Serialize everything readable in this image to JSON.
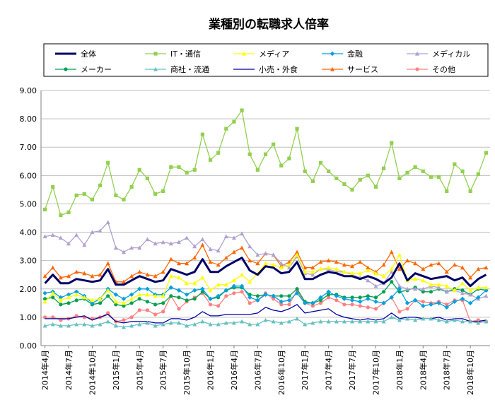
{
  "chart_data": {
    "type": "line",
    "title": "業種別の転職求人倍率",
    "xlabel": "",
    "ylabel": "",
    "ylim": [
      0,
      9
    ],
    "yticks": [
      "0.00",
      "1.00",
      "2.00",
      "3.00",
      "4.00",
      "5.00",
      "6.00",
      "7.00",
      "8.00",
      "9.00"
    ],
    "grid": "horizontal",
    "legend_position": "top",
    "x": [
      "2014年4月",
      "2014年5月",
      "2014年6月",
      "2014年7月",
      "2014年8月",
      "2014年9月",
      "2014年10月",
      "2014年11月",
      "2014年12月",
      "2015年1月",
      "2015年2月",
      "2015年3月",
      "2015年4月",
      "2015年5月",
      "2015年6月",
      "2015年7月",
      "2015年8月",
      "2015年9月",
      "2015年10月",
      "2015年11月",
      "2015年12月",
      "2016年1月",
      "2016年2月",
      "2016年3月",
      "2016年4月",
      "2016年5月",
      "2016年6月",
      "2016年7月",
      "2016年8月",
      "2016年9月",
      "2016年10月",
      "2016年11月",
      "2016年12月",
      "2017年1月",
      "2017年2月",
      "2017年3月",
      "2017年4月",
      "2017年5月",
      "2017年6月",
      "2017年7月",
      "2017年8月",
      "2017年9月",
      "2017年10月",
      "2017年11月",
      "2017年12月",
      "2018年1月",
      "2018年2月",
      "2018年3月",
      "2018年4月",
      "2018年5月",
      "2018年6月",
      "2018年7月",
      "2018年8月",
      "2018年9月",
      "2018年10月",
      "2018年11月",
      "2018年12月"
    ],
    "xtick_labels": [
      "2014年4月",
      "2014年7月",
      "2014年10月",
      "2015年1月",
      "2015年4月",
      "2015年7月",
      "2015年10月",
      "2016年1月",
      "2016年4月",
      "2016年7月",
      "2016年10月",
      "2017年1月",
      "2017年4月",
      "2017年7月",
      "2017年10月",
      "2018年1月",
      "2018年4月",
      "2018年7月",
      "2018年10月"
    ],
    "series": [
      {
        "name": "全体",
        "color": "#000066",
        "width": 3,
        "marker": "none",
        "values": [
          2.2,
          2.5,
          2.2,
          2.2,
          2.35,
          2.3,
          2.25,
          2.3,
          2.7,
          2.15,
          2.15,
          2.3,
          2.45,
          2.35,
          2.25,
          2.3,
          2.7,
          2.6,
          2.5,
          2.6,
          3.05,
          2.6,
          2.6,
          2.8,
          2.95,
          3.1,
          2.65,
          2.5,
          2.8,
          2.75,
          2.55,
          2.6,
          2.95,
          2.35,
          2.35,
          2.5,
          2.6,
          2.55,
          2.45,
          2.45,
          2.35,
          2.45,
          2.35,
          2.2,
          2.4,
          2.9,
          2.3,
          2.55,
          2.45,
          2.35,
          2.4,
          2.45,
          2.3,
          2.4,
          2.1,
          2.35,
          2.5
        ]
      },
      {
        "name": "IT・通信",
        "color": "#92D050",
        "width": 1.3,
        "marker": "square",
        "values": [
          4.8,
          5.6,
          4.6,
          4.7,
          5.3,
          5.35,
          5.15,
          5.65,
          6.45,
          5.3,
          5.15,
          5.6,
          6.2,
          5.9,
          5.35,
          5.45,
          6.3,
          6.3,
          6.1,
          6.2,
          7.45,
          6.55,
          6.8,
          7.65,
          7.9,
          8.3,
          6.75,
          6.2,
          6.75,
          7.1,
          6.35,
          6.6,
          7.65,
          6.15,
          5.8,
          6.45,
          6.15,
          5.9,
          5.7,
          5.5,
          5.85,
          6.0,
          5.6,
          6.25,
          7.15,
          5.9,
          6.1,
          6.3,
          6.15,
          5.95,
          5.95,
          5.45,
          6.4,
          6.15,
          5.45,
          6.05,
          6.8
        ]
      },
      {
        "name": "メディア",
        "color": "#FFFF00",
        "width": 1.3,
        "marker": "triangle",
        "values": [
          1.55,
          1.85,
          1.6,
          1.7,
          1.8,
          1.7,
          1.6,
          1.65,
          1.95,
          1.55,
          1.5,
          1.65,
          1.8,
          1.8,
          1.75,
          1.75,
          2.45,
          2.4,
          2.2,
          2.2,
          2.4,
          1.95,
          2.15,
          2.15,
          2.3,
          2.5,
          2.25,
          2.55,
          2.9,
          2.85,
          2.75,
          2.85,
          3.2,
          2.6,
          2.6,
          2.7,
          2.75,
          2.7,
          2.6,
          2.55,
          2.55,
          2.65,
          2.55,
          2.45,
          2.7,
          3.2,
          2.3,
          2.35,
          2.3,
          2.15,
          2.15,
          2.1,
          1.95,
          2.2,
          1.95,
          2.05,
          2.05
        ]
      },
      {
        "name": "金融",
        "color": "#00A0E0",
        "width": 1.3,
        "marker": "diamond",
        "values": [
          1.85,
          1.9,
          1.7,
          1.8,
          1.9,
          1.75,
          1.5,
          1.65,
          2.0,
          1.8,
          1.65,
          1.8,
          2.0,
          2.0,
          1.8,
          1.8,
          2.05,
          1.95,
          1.8,
          1.95,
          2.0,
          1.65,
          1.75,
          1.95,
          2.1,
          2.1,
          1.7,
          1.6,
          1.8,
          1.75,
          1.55,
          1.6,
          1.85,
          1.5,
          1.5,
          1.7,
          1.9,
          1.75,
          1.65,
          1.6,
          1.55,
          1.65,
          1.55,
          1.5,
          1.7,
          2.0,
          1.5,
          1.6,
          1.4,
          1.45,
          1.5,
          1.35,
          1.55,
          1.65,
          1.5,
          1.7,
          1.95
        ]
      },
      {
        "name": "メディカル",
        "color": "#B0A0D0",
        "width": 1.3,
        "marker": "triangle",
        "values": [
          3.85,
          3.9,
          3.8,
          3.6,
          3.9,
          3.55,
          4.0,
          4.05,
          4.35,
          3.45,
          3.3,
          3.45,
          3.45,
          3.75,
          3.6,
          3.65,
          3.6,
          3.65,
          3.8,
          3.5,
          3.75,
          3.4,
          3.35,
          3.85,
          3.8,
          3.95,
          3.5,
          3.2,
          3.25,
          3.2,
          2.9,
          2.75,
          3.15,
          2.55,
          2.5,
          2.7,
          2.7,
          2.6,
          2.6,
          2.5,
          2.4,
          2.3,
          2.1,
          2.2,
          2.6,
          2.1,
          2.0,
          2.0,
          2.0,
          2.1,
          2.05,
          1.9,
          1.95,
          1.85,
          1.8,
          1.65,
          1.75
        ]
      },
      {
        "name": "メーカー",
        "color": "#00A050",
        "width": 1.3,
        "marker": "circle",
        "values": [
          1.65,
          1.7,
          1.45,
          1.5,
          1.6,
          1.65,
          1.45,
          1.5,
          1.75,
          1.45,
          1.4,
          1.5,
          1.65,
          1.55,
          1.45,
          1.5,
          1.75,
          1.7,
          1.6,
          1.65,
          1.9,
          1.65,
          1.7,
          1.95,
          2.05,
          2.05,
          1.8,
          1.75,
          1.8,
          1.75,
          1.75,
          1.75,
          2.0,
          1.55,
          1.5,
          1.6,
          1.8,
          1.8,
          1.7,
          1.7,
          1.7,
          1.75,
          1.7,
          1.9,
          2.25,
          1.9,
          1.95,
          2.05,
          1.9,
          1.9,
          2.0,
          1.9,
          2.0,
          1.95,
          1.8,
          2.0,
          1.95
        ]
      },
      {
        "name": "商社・流通",
        "color": "#66C0C0",
        "width": 1.3,
        "marker": "triangle",
        "values": [
          0.7,
          0.75,
          0.7,
          0.7,
          0.75,
          0.75,
          0.7,
          0.75,
          0.85,
          0.7,
          0.65,
          0.7,
          0.75,
          0.8,
          0.7,
          0.75,
          0.8,
          0.8,
          0.7,
          0.75,
          0.85,
          0.75,
          0.75,
          0.8,
          0.8,
          0.85,
          0.75,
          0.75,
          0.9,
          0.85,
          0.8,
          0.85,
          0.95,
          0.75,
          0.8,
          0.85,
          0.85,
          0.85,
          0.85,
          0.85,
          0.85,
          0.85,
          0.85,
          0.85,
          1.0,
          0.9,
          0.95,
          0.9,
          0.95,
          0.95,
          0.9,
          0.85,
          0.9,
          0.85,
          0.85,
          0.8,
          0.85
        ]
      },
      {
        "name": "小売・外食",
        "color": "#0000A0",
        "width": 1.3,
        "marker": "none",
        "values": [
          0.95,
          0.95,
          0.95,
          0.95,
          1.0,
          1.05,
          0.9,
          1.0,
          1.1,
          0.85,
          0.8,
          0.85,
          0.85,
          0.85,
          0.8,
          0.8,
          0.95,
          0.95,
          0.9,
          1.0,
          1.2,
          1.05,
          1.05,
          1.1,
          1.1,
          1.1,
          1.1,
          1.15,
          1.35,
          1.25,
          1.2,
          1.3,
          1.45,
          1.15,
          1.2,
          1.25,
          1.3,
          1.1,
          1.0,
          0.95,
          0.9,
          0.95,
          0.9,
          0.95,
          1.15,
          0.95,
          1.0,
          1.0,
          0.95,
          0.95,
          1.0,
          0.9,
          0.95,
          0.95,
          0.85,
          0.85,
          0.9
        ]
      },
      {
        "name": "サービス",
        "color": "#FF6600",
        "width": 1.3,
        "marker": "triangle",
        "values": [
          2.45,
          2.75,
          2.4,
          2.45,
          2.6,
          2.55,
          2.45,
          2.5,
          2.9,
          2.25,
          2.25,
          2.45,
          2.6,
          2.5,
          2.45,
          2.6,
          3.05,
          2.9,
          2.9,
          3.1,
          3.55,
          2.95,
          2.85,
          3.1,
          3.3,
          3.45,
          3.0,
          2.9,
          3.25,
          3.2,
          2.8,
          2.95,
          3.3,
          2.75,
          2.75,
          2.95,
          3.0,
          2.95,
          2.85,
          2.8,
          2.95,
          2.75,
          2.6,
          2.85,
          3.3,
          2.7,
          3.0,
          2.9,
          2.7,
          2.85,
          2.9,
          2.6,
          2.85,
          2.75,
          2.4,
          2.7,
          2.75
        ]
      },
      {
        "name": "その他",
        "color": "#FF8080",
        "width": 1.3,
        "marker": "circle",
        "values": [
          1.0,
          1.0,
          0.9,
          0.95,
          1.05,
          1.0,
          0.95,
          1.0,
          1.15,
          0.85,
          0.9,
          1.0,
          1.25,
          1.25,
          1.1,
          1.2,
          1.75,
          1.3,
          1.55,
          1.7,
          1.85,
          1.45,
          1.4,
          1.75,
          1.85,
          1.9,
          1.5,
          1.6,
          1.85,
          1.65,
          1.45,
          1.45,
          1.95,
          1.5,
          1.4,
          1.5,
          1.7,
          1.6,
          1.45,
          1.45,
          1.4,
          1.35,
          1.3,
          1.5,
          1.7,
          1.2,
          1.3,
          1.6,
          1.55,
          1.5,
          1.55,
          1.45,
          1.6,
          1.6,
          0.85,
          0.9,
          0.85
        ]
      }
    ]
  }
}
